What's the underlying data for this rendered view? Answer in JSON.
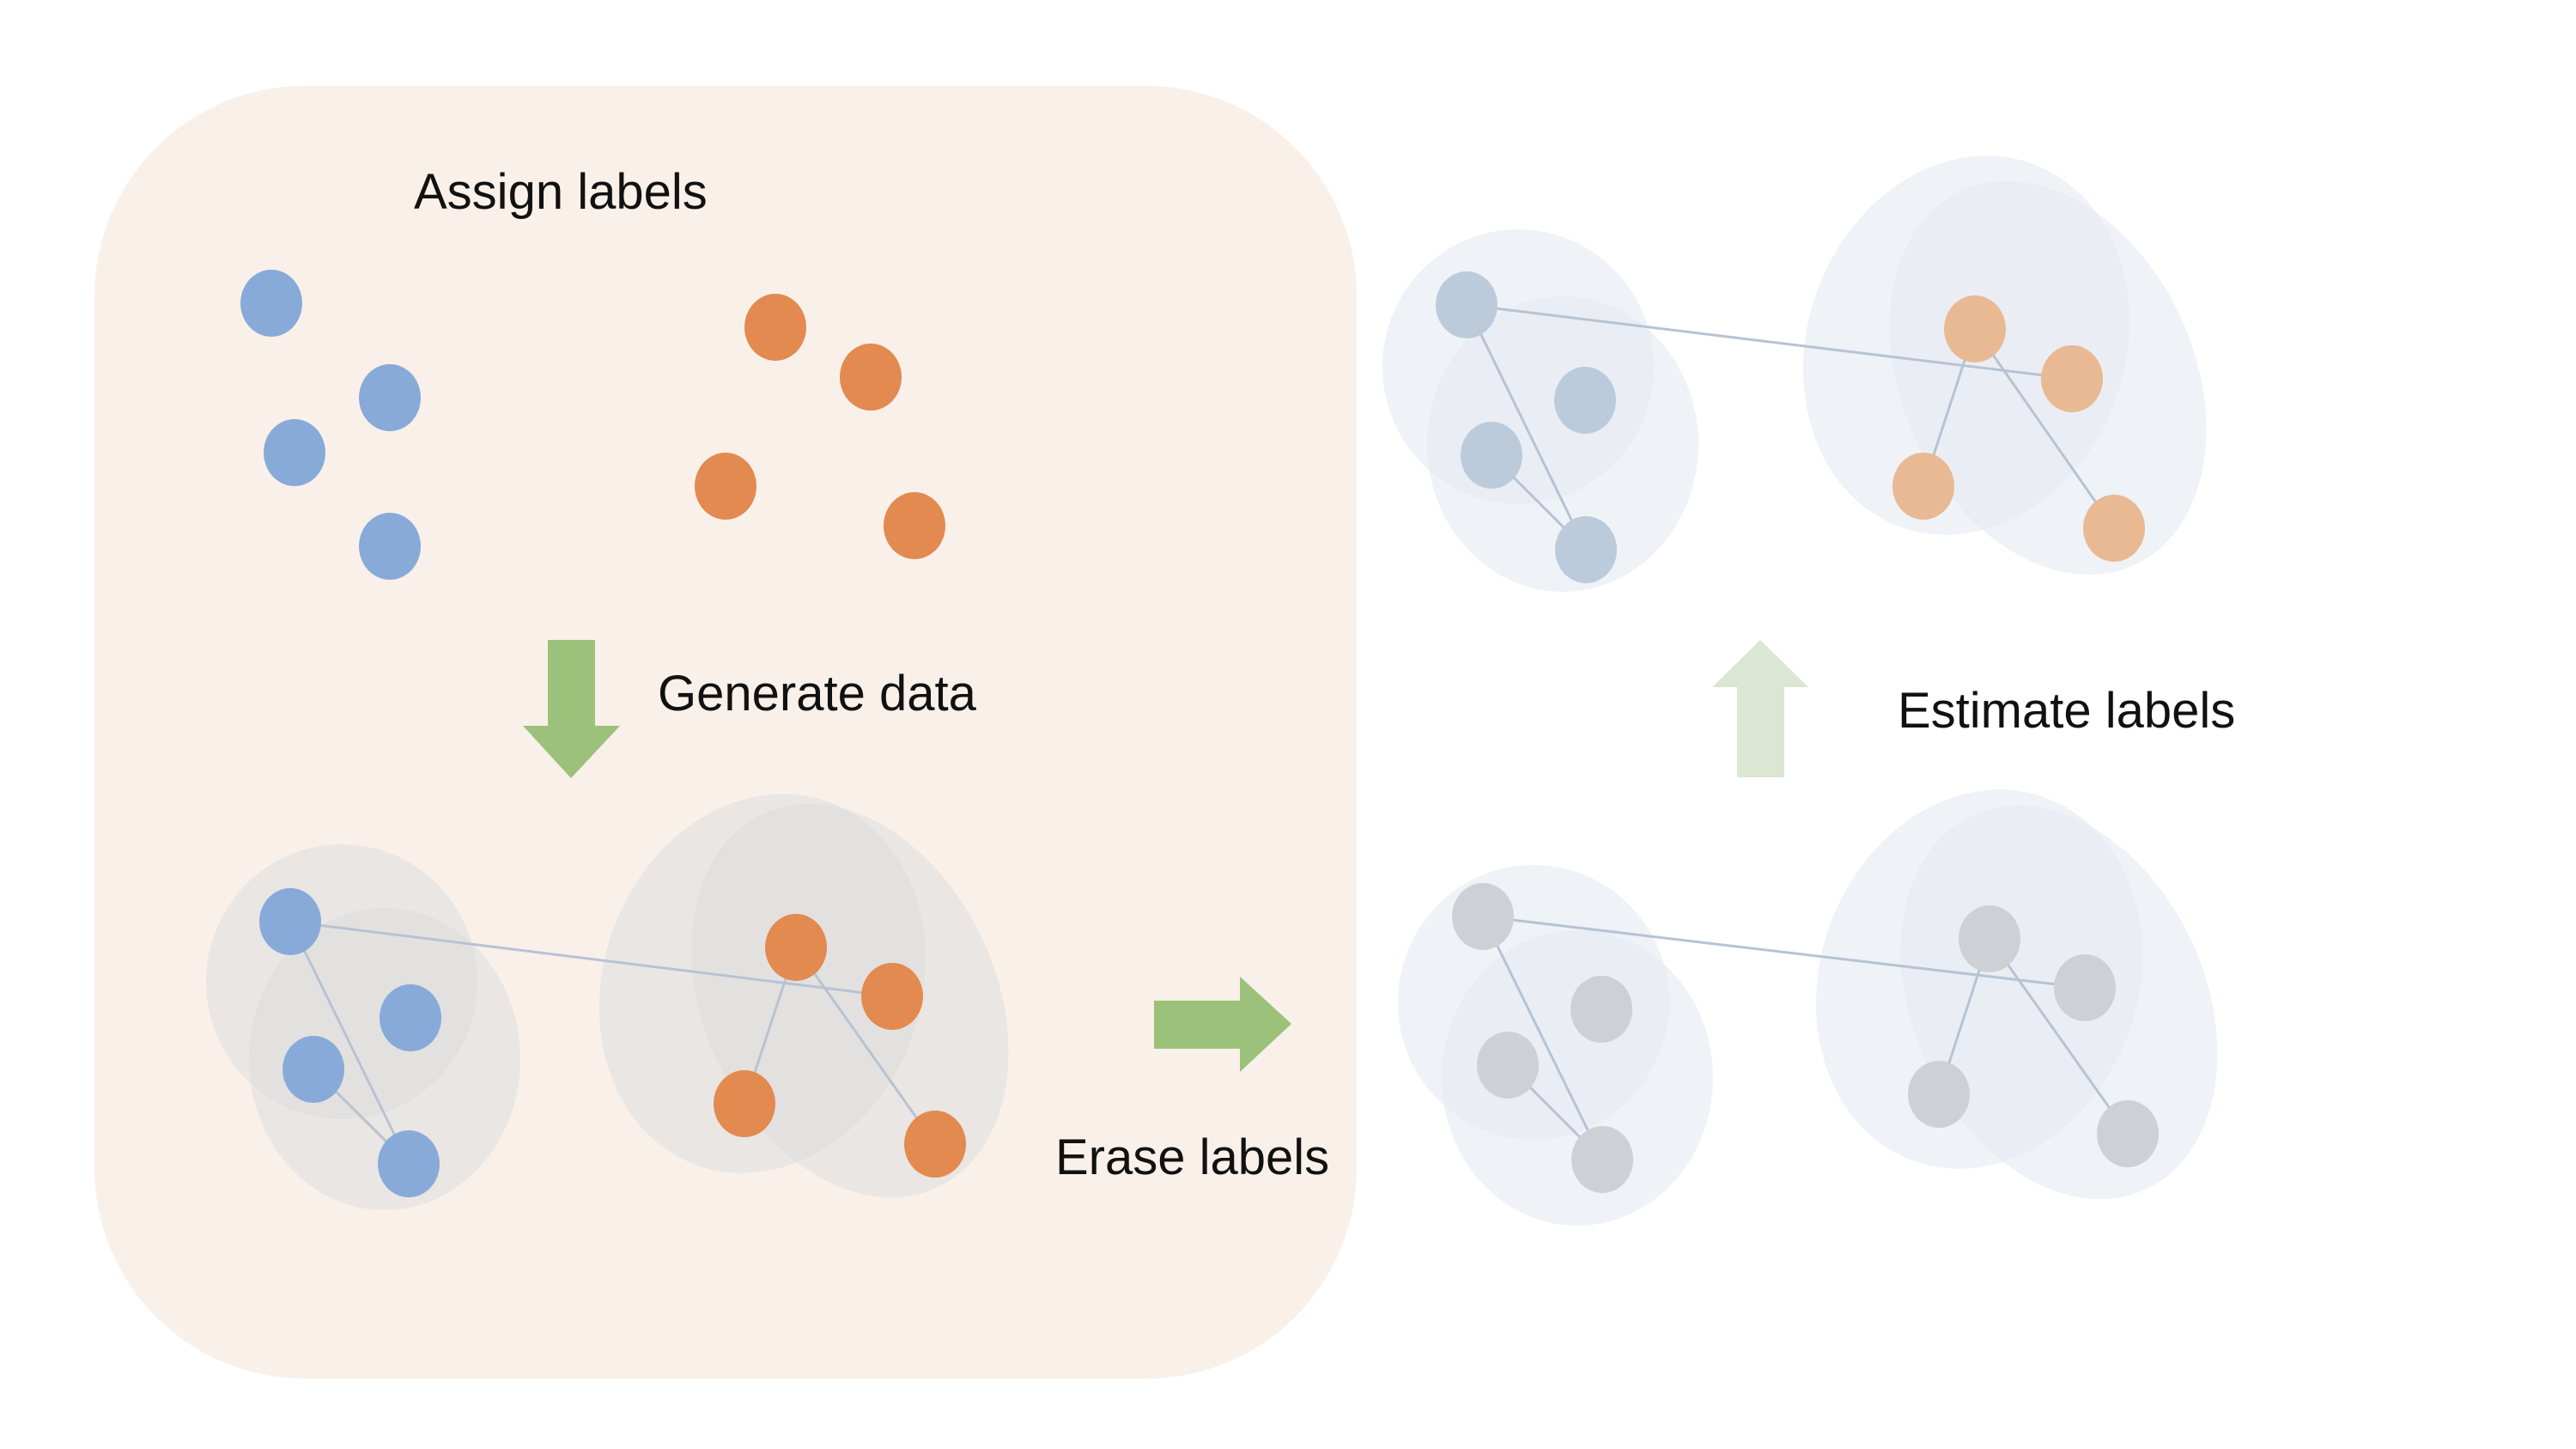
{
  "labels": {
    "assign": "Assign labels",
    "generate": "Generate data",
    "erase": "Erase labels",
    "estimate": "Estimate labels"
  },
  "colors": {
    "panel_bg": "#f9f0ea",
    "group_a": "#88aad9",
    "group_b": "#e28a50",
    "group_a_faded": "#bccbdb",
    "group_b_faded": "#e8b993",
    "unlabeled": "#cdd0d5",
    "arrow": "#9bc17a",
    "arrow_faded": "#dbe7d2",
    "edge": "#b7c3d3",
    "blob": "#dcdcdc",
    "blob_faded": "#e6ebf2"
  },
  "icons": [
    "arrow-down-icon",
    "arrow-right-icon",
    "arrow-up-icon"
  ]
}
